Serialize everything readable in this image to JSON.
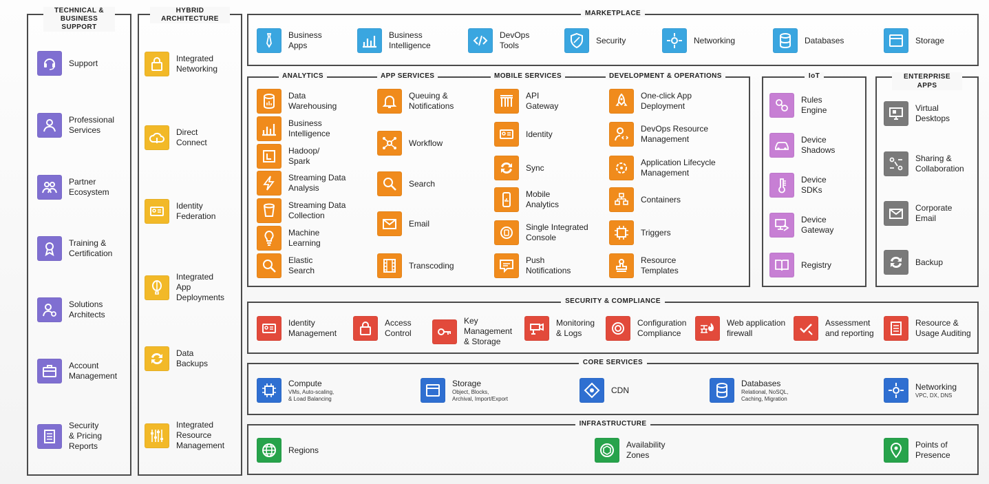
{
  "colors": {
    "support": "#7f6fd1",
    "hybrid": "#f2b928",
    "marketplace": "#3aa6e0",
    "services": "#f08b1c",
    "iot": "#c77fd4",
    "enterprise": "#7a7a7a",
    "security": "#e24a3b",
    "core": "#2f6fd1",
    "infrastructure": "#27a34b"
  },
  "support": {
    "title": "TECHNICAL & BUSINESS SUPPORT",
    "items": [
      {
        "label": "Support",
        "icon": "headset-icon"
      },
      {
        "label": "Professional\nServices",
        "icon": "person-icon"
      },
      {
        "label": "Partner\nEcosystem",
        "icon": "people-icon"
      },
      {
        "label": "Training &\nCertification",
        "icon": "ribbon-icon"
      },
      {
        "label": "Solutions\nArchitects",
        "icon": "architect-icon"
      },
      {
        "label": "Account\nManagement",
        "icon": "briefcase-icon"
      },
      {
        "label": "Security\n& Pricing\nReports",
        "icon": "report-icon"
      }
    ]
  },
  "hybrid": {
    "title": "HYBRID ARCHITECTURE",
    "items": [
      {
        "label": "Integrated\nNetworking",
        "icon": "lock-icon"
      },
      {
        "label": "Direct\nConnect",
        "icon": "cloud-icon"
      },
      {
        "label": "Identity\nFederation",
        "icon": "id-card-icon"
      },
      {
        "label": "Integrated\nApp\nDeployments",
        "icon": "balloon-icon"
      },
      {
        "label": "Data\nBackups",
        "icon": "sync-icon"
      },
      {
        "label": "Integrated\nResource\nManagement",
        "icon": "sliders-icon"
      }
    ]
  },
  "marketplace": {
    "title": "MARKETPLACE",
    "items": [
      {
        "label": "Business\nApps",
        "icon": "tie-icon"
      },
      {
        "label": "Business\nIntelligence",
        "icon": "bar-chart-icon"
      },
      {
        "label": "DevOps\nTools",
        "icon": "code-icon"
      },
      {
        "label": "Security",
        "icon": "shield-icon"
      },
      {
        "label": "Networking",
        "icon": "network-icon"
      },
      {
        "label": "Databases",
        "icon": "database-icon"
      },
      {
        "label": "Storage",
        "icon": "storage-icon"
      }
    ]
  },
  "analytics": {
    "title": "ANALYTICS",
    "items": [
      {
        "label": "Data\nWarehousing",
        "icon": "database-icon"
      },
      {
        "label": "Business\nIntelligence",
        "icon": "bar-chart-icon"
      },
      {
        "label": "Hadoop/\nSpark",
        "icon": "hadoop-icon"
      },
      {
        "label": "Streaming Data\nAnalysis",
        "icon": "lightning-icon"
      },
      {
        "label": "Streaming Data\nCollection",
        "icon": "bucket-icon"
      },
      {
        "label": "Machine\nLearning",
        "icon": "lightbulb-icon"
      },
      {
        "label": "Elastic\nSearch",
        "icon": "magnifier-icon"
      }
    ]
  },
  "app_services": {
    "title": "APP SERVICES",
    "items": [
      {
        "label": "Queuing &\nNotifications",
        "icon": "bell-icon"
      },
      {
        "label": "Workflow",
        "icon": "workflow-icon"
      },
      {
        "label": "Search",
        "icon": "search-icon"
      },
      {
        "label": "Email",
        "icon": "envelope-icon"
      },
      {
        "label": "Transcoding",
        "icon": "film-icon"
      }
    ]
  },
  "mobile_services": {
    "title": "MOBILE SERVICES",
    "items": [
      {
        "label": "API\nGateway",
        "icon": "gateway-icon"
      },
      {
        "label": "Identity",
        "icon": "id-card-icon"
      },
      {
        "label": "Sync",
        "icon": "sync-icon"
      },
      {
        "label": "Mobile\nAnalytics",
        "icon": "mobile-analytics-icon"
      },
      {
        "label": "Single Integrated\nConsole",
        "icon": "console-icon"
      },
      {
        "label": "Push\nNotifications",
        "icon": "chat-icon"
      }
    ]
  },
  "devops": {
    "title": "DEVELOPMENT & OPERATIONS",
    "items": [
      {
        "label": "One-click App\nDeployment",
        "icon": "rocket-icon"
      },
      {
        "label": "DevOps Resource\nManagement",
        "icon": "person-code-icon"
      },
      {
        "label": "Application Lifecycle\nManagement",
        "icon": "lifecycle-icon"
      },
      {
        "label": "Containers",
        "icon": "containers-icon"
      },
      {
        "label": "Triggers",
        "icon": "chip-icon"
      },
      {
        "label": "Resource\nTemplates",
        "icon": "stamp-icon"
      }
    ]
  },
  "iot": {
    "title": "IoT",
    "items": [
      {
        "label": "Rules\nEngine",
        "icon": "rules-icon"
      },
      {
        "label": "Device\nShadows",
        "icon": "car-icon"
      },
      {
        "label": "Device\nSDKs",
        "icon": "thermometer-icon"
      },
      {
        "label": "Device\nGateway",
        "icon": "device-gateway-icon"
      },
      {
        "label": "Registry",
        "icon": "book-icon"
      }
    ]
  },
  "enterprise": {
    "title": "ENTERPRISE APPS",
    "items": [
      {
        "label": "Virtual\nDesktops",
        "icon": "monitor-icon"
      },
      {
        "label": "Sharing &\nCollaboration",
        "icon": "share-icon"
      },
      {
        "label": "Corporate\nEmail",
        "icon": "envelope-icon"
      },
      {
        "label": "Backup",
        "icon": "sync-icon"
      }
    ]
  },
  "security": {
    "title": "SECURITY & COMPLIANCE",
    "items": [
      {
        "label": "Identity\nManagement",
        "icon": "id-card-icon"
      },
      {
        "label": "Access\nControl",
        "icon": "lock-icon"
      },
      {
        "label": "Key\nManagement\n& Storage",
        "icon": "key-icon"
      },
      {
        "label": "Monitoring\n& Logs",
        "icon": "camera-icon"
      },
      {
        "label": "Configuration\nCompliance",
        "icon": "target-icon"
      },
      {
        "label": "Web application\nfirewall",
        "icon": "firewall-icon"
      },
      {
        "label": "Assessment\nand reporting",
        "icon": "check-icon"
      },
      {
        "label": "Resource &\nUsage Auditing",
        "icon": "report-icon"
      }
    ]
  },
  "core": {
    "title": "CORE SERVICES",
    "items": [
      {
        "label": "Compute",
        "sub": "VMs, Auto-scaling,\n& Load Balancing",
        "icon": "chip-icon"
      },
      {
        "label": "Storage",
        "sub": "Object, Blocks,\nArchival, Import/Export",
        "icon": "storage-icon"
      },
      {
        "label": "CDN",
        "sub": "",
        "icon": "cdn-icon"
      },
      {
        "label": "Databases",
        "sub": "Relational, NoSQL,\nCaching, Migration",
        "icon": "database-icon"
      },
      {
        "label": "Networking",
        "sub": "VPC, DX, DNS",
        "icon": "network-icon"
      }
    ]
  },
  "infrastructure": {
    "title": "INFRASTRUCTURE",
    "items": [
      {
        "label": "Regions",
        "icon": "globe-icon"
      },
      {
        "label": "Availability\nZones",
        "icon": "zones-icon"
      },
      {
        "label": "Points of\nPresence",
        "icon": "pin-icon"
      }
    ]
  }
}
